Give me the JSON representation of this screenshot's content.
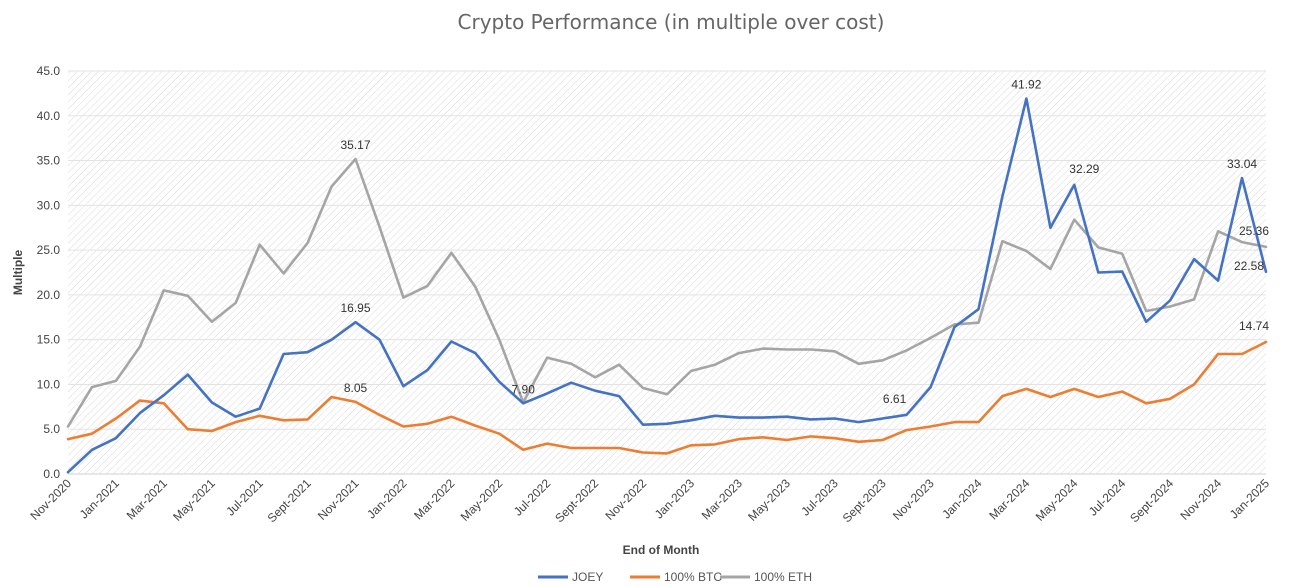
{
  "chart_data": {
    "type": "line",
    "title": "Crypto Performance (in multiple over cost)",
    "xlabel": "End of Month",
    "ylabel": "Multiple",
    "ylim": [
      0,
      45
    ],
    "yticks": [
      "0.0",
      "5.0",
      "10.0",
      "15.0",
      "20.0",
      "25.0",
      "30.0",
      "35.0",
      "40.0",
      "45.0"
    ],
    "x_tick_labels": [
      "Nov-2020",
      "Jan-2021",
      "Mar-2021",
      "May-2021",
      "Jul-2021",
      "Sept-2021",
      "Nov-2021",
      "Jan-2022",
      "Mar-2022",
      "May-2022",
      "Jul-2022",
      "Sept-2022",
      "Nov-2022",
      "Jan-2023",
      "Mar-2023",
      "May-2023",
      "Jul-2023",
      "Sept-2023",
      "Nov-2023",
      "Jan-2024",
      "Mar-2024",
      "May-2024",
      "Jul-2024",
      "Sept-2024",
      "Nov-2024",
      "Jan-2025"
    ],
    "categories": [
      "Nov-2020",
      "Dec-2020",
      "Jan-2021",
      "Feb-2021",
      "Mar-2021",
      "Apr-2021",
      "May-2021",
      "Jun-2021",
      "Jul-2021",
      "Aug-2021",
      "Sept-2021",
      "Oct-2021",
      "Nov-2021",
      "Dec-2021",
      "Jan-2022",
      "Feb-2022",
      "Mar-2022",
      "Apr-2022",
      "May-2022",
      "Jun-2022",
      "Jul-2022",
      "Aug-2022",
      "Sept-2022",
      "Oct-2022",
      "Nov-2022",
      "Dec-2022",
      "Jan-2023",
      "Feb-2023",
      "Mar-2023",
      "Apr-2023",
      "May-2023",
      "Jun-2023",
      "Jul-2023",
      "Aug-2023",
      "Sept-2023",
      "Oct-2023",
      "Nov-2023",
      "Dec-2023",
      "Jan-2024",
      "Feb-2024",
      "Mar-2024",
      "Apr-2024",
      "May-2024",
      "Jun-2024",
      "Jul-2024",
      "Aug-2024",
      "Sept-2024",
      "Oct-2024",
      "Nov-2024",
      "Dec-2024",
      "Jan-2025"
    ],
    "series": [
      {
        "name": "JOEY",
        "color": "#4472C4",
        "values": [
          0.2,
          2.7,
          4.0,
          6.8,
          8.8,
          11.1,
          8.0,
          6.4,
          7.3,
          13.4,
          13.6,
          15.0,
          16.95,
          15.0,
          9.8,
          11.6,
          14.8,
          13.5,
          10.3,
          7.9,
          9.0,
          10.2,
          9.3,
          8.7,
          5.5,
          5.6,
          6.0,
          6.5,
          6.3,
          6.3,
          6.4,
          6.1,
          6.2,
          5.8,
          6.2,
          6.61,
          9.7,
          16.4,
          18.4,
          31.0,
          41.92,
          27.5,
          32.29,
          22.5,
          22.6,
          17.0,
          19.4,
          24.0,
          21.6,
          33.04,
          22.58
        ]
      },
      {
        "name": "100% BTC",
        "color": "#ED7D31",
        "values": [
          3.9,
          4.5,
          6.2,
          8.2,
          7.9,
          5.0,
          4.8,
          5.8,
          6.5,
          6.0,
          6.1,
          8.6,
          8.05,
          6.6,
          5.3,
          5.6,
          6.4,
          5.4,
          4.5,
          2.7,
          3.4,
          2.9,
          2.9,
          2.9,
          2.4,
          2.3,
          3.2,
          3.3,
          3.9,
          4.1,
          3.8,
          4.2,
          4.0,
          3.6,
          3.8,
          4.9,
          5.3,
          5.8,
          5.8,
          8.7,
          9.5,
          8.6,
          9.5,
          8.6,
          9.2,
          7.9,
          8.4,
          10.0,
          13.4,
          13.4,
          14.74
        ]
      },
      {
        "name": "100% ETH",
        "color": "#A5A5A5",
        "values": [
          5.3,
          9.7,
          10.4,
          14.2,
          20.5,
          19.9,
          17.0,
          19.1,
          25.6,
          22.4,
          25.8,
          32.1,
          35.17,
          27.6,
          19.7,
          21.0,
          24.7,
          20.9,
          15.0,
          8.0,
          13.0,
          12.3,
          10.8,
          12.2,
          9.6,
          8.9,
          11.5,
          12.2,
          13.5,
          14.0,
          13.9,
          13.9,
          13.7,
          12.3,
          12.7,
          13.8,
          15.2,
          16.7,
          16.9,
          26.0,
          24.9,
          22.9,
          28.4,
          25.3,
          24.6,
          18.2,
          18.7,
          19.5,
          27.1,
          25.9,
          25.36
        ]
      }
    ],
    "annotations": [
      {
        "series": 0,
        "index": 12,
        "text": "16.95",
        "pos": "above"
      },
      {
        "series": 0,
        "index": 19,
        "text": "7.90",
        "pos": "above"
      },
      {
        "series": 0,
        "index": 35,
        "text": "6.61",
        "pos": "above-left"
      },
      {
        "series": 0,
        "index": 40,
        "text": "41.92",
        "pos": "above"
      },
      {
        "series": 0,
        "index": 42,
        "text": "32.29",
        "pos": "above-right"
      },
      {
        "series": 0,
        "index": 49,
        "text": "33.04",
        "pos": "above"
      },
      {
        "series": 0,
        "index": 50,
        "text": "22.58",
        "pos": "left"
      },
      {
        "series": 1,
        "index": 12,
        "text": "8.05",
        "pos": "above"
      },
      {
        "series": 1,
        "index": 50,
        "text": "14.74",
        "pos": "above-left"
      },
      {
        "series": 2,
        "index": 12,
        "text": "35.17",
        "pos": "above"
      },
      {
        "series": 2,
        "index": 50,
        "text": "25.36",
        "pos": "above-left"
      }
    ],
    "legend": [
      "JOEY",
      "100% BTC",
      "100% ETH"
    ],
    "legend_position": "bottom",
    "grid": true
  }
}
